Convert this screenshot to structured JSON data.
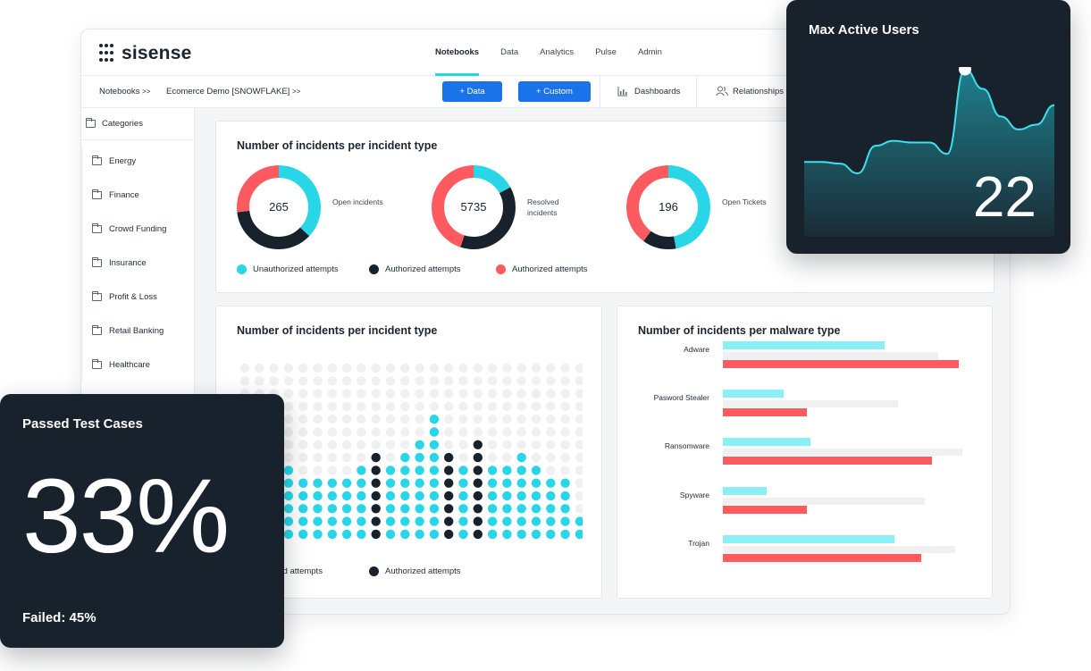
{
  "app": {
    "logo": "sisense",
    "nav": [
      "Notebooks",
      "Data",
      "Analytics",
      "Pulse",
      "Admin"
    ],
    "nav_active": 0
  },
  "subbar": {
    "crumb_1": "Notebooks",
    "crumb_2": "Ecomerce Demo [SNOWFLAKE]",
    "add_data": "Data",
    "add_custom": "Custom",
    "dashboards": "Dashboards",
    "relationships": "Relationships"
  },
  "sidebar": {
    "header": "Categories",
    "items": [
      "Energy",
      "Finance",
      "Crowd Funding",
      "Insurance",
      "Profit & Loss",
      "Retail Banking",
      "Healthcare"
    ]
  },
  "colors": {
    "cyan": "#28d6e8",
    "dark": "#17222c",
    "red": "#ff5a5f",
    "grey": "#f0f0f0",
    "blue": "#1a73e8"
  },
  "donut_card": {
    "title": "Number of incidents per incident type",
    "donuts": [
      {
        "value": "265",
        "label": "Open incidents",
        "segments": [
          0.37,
          0.36,
          0.27
        ]
      },
      {
        "value": "5735",
        "label": "Resolved incidents",
        "segments": [
          0.17,
          0.38,
          0.45
        ]
      },
      {
        "value": "196",
        "label": "Open Tickets",
        "segments": [
          0.47,
          0.13,
          0.4
        ]
      }
    ],
    "legend": [
      "Unauthorized attempts",
      "Authorized attempts",
      "Authorized attempts"
    ]
  },
  "dot_card": {
    "title": "Number of incidents per incident type",
    "legend_partial": "orized attempts",
    "legend_dark": "Authorized attempts",
    "columns": [
      6,
      6,
      6,
      6,
      5,
      5,
      5,
      5,
      6,
      7,
      6,
      7,
      8,
      10,
      7,
      6,
      8,
      6,
      6,
      7,
      6,
      5,
      5,
      2
    ],
    "dark_columns": [
      9,
      14,
      16
    ]
  },
  "bar_card": {
    "title": "Number of incidents per malware type",
    "chart_data": {
      "type": "bar",
      "categories": [
        "Adware",
        "Pasword Stealer",
        "Ransomware",
        "Spyware",
        "Trojan"
      ],
      "series": [
        {
          "values": [
            0.48,
            0.18,
            0.26,
            0.13,
            0.51
          ]
        },
        {
          "values": [
            0.64,
            0.52,
            0.71,
            0.6,
            0.69
          ]
        },
        {
          "values": [
            0.7,
            0.25,
            0.62,
            0.25,
            0.59
          ]
        }
      ]
    }
  },
  "max_users": {
    "title": "Max Active Users",
    "value": "22",
    "chart_data": {
      "type": "area",
      "values": [
        0.35,
        0.35,
        0.34,
        0.28,
        0.45,
        0.48,
        0.47,
        0.47,
        0.4,
        0.92,
        0.8,
        0.63,
        0.55,
        0.58,
        0.7
      ]
    }
  },
  "passed": {
    "title": "Passed Test Cases",
    "value": "33%",
    "failed": "Failed: 45%"
  }
}
